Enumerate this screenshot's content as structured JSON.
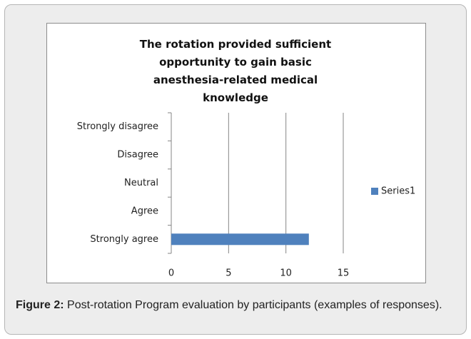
{
  "chart_data": {
    "type": "bar",
    "orientation": "horizontal",
    "title": "The rotation provided sufficient opportunity to gain basic anesthesia-related medical knowledge",
    "categories": [
      "Strongly agree",
      "Agree",
      "Neutral",
      "Disagree",
      "Strongly disagree"
    ],
    "series": [
      {
        "name": "Series1",
        "color": "#4f81bd",
        "values": [
          12,
          0,
          0,
          0,
          0
        ]
      }
    ],
    "xlim": [
      0,
      15
    ],
    "xticks": [
      0,
      5,
      10,
      15
    ],
    "grid": true,
    "legend": "right"
  },
  "caption": {
    "label": "Figure 2:",
    "text": "Post-rotation Program evaluation by participants (examples of responses)."
  }
}
